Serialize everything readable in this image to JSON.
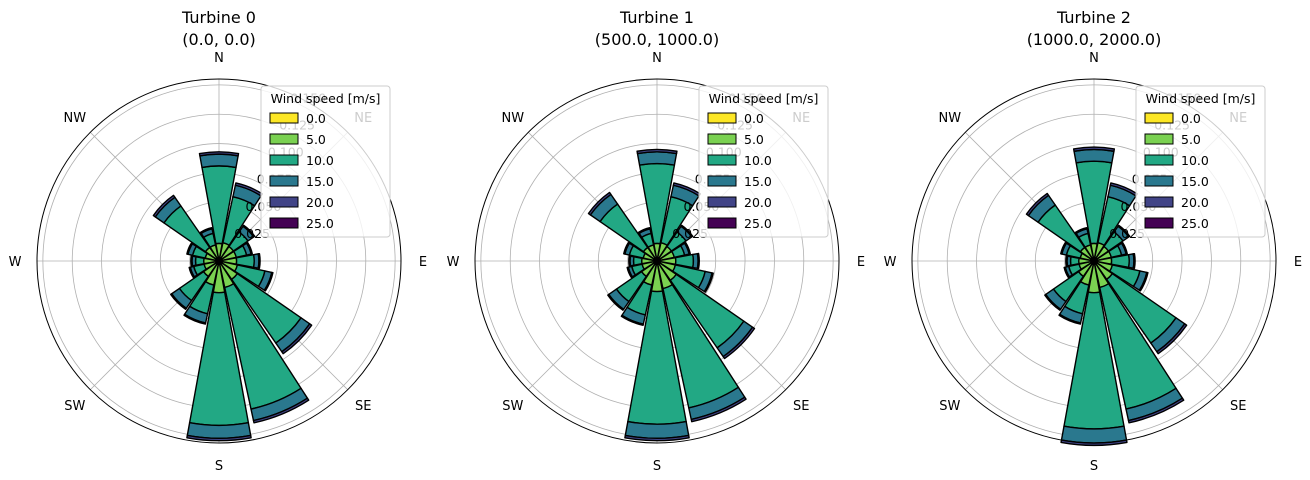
{
  "chart_data": [
    {
      "type": "bar",
      "subtype": "polar-windrose",
      "title": "Turbine 0",
      "subtitle": "(0.0, 0.0)",
      "directions": [
        "N",
        "NNE",
        "NE",
        "ENE",
        "E",
        "ESE",
        "SE",
        "SSE",
        "S",
        "SSW",
        "SW",
        "WSW",
        "W",
        "WNW",
        "NW",
        "NNW"
      ],
      "direction_labels": [
        "N",
        "NE",
        "E",
        "SE",
        "S",
        "SW",
        "W",
        "NW"
      ],
      "radial_ticks": [
        "0.025",
        "0.050",
        "0.075",
        "0.100",
        "0.125",
        "0.150"
      ],
      "rlim": [
        0,
        0.155
      ],
      "legend": {
        "title": "Wind speed [m/s]",
        "placement": "top-right"
      },
      "series": [
        {
          "name": "0.0",
          "color": "#fde725",
          "values": [
            0.001,
            0.001,
            0.001,
            0.001,
            0.001,
            0.001,
            0.001,
            0.001,
            0.001,
            0.001,
            0.001,
            0.001,
            0.001,
            0.001,
            0.001,
            0.001
          ]
        },
        {
          "name": "5.0",
          "color": "#7ad151",
          "values": [
            0.014,
            0.015,
            0.014,
            0.014,
            0.014,
            0.015,
            0.018,
            0.022,
            0.026,
            0.02,
            0.015,
            0.012,
            0.012,
            0.011,
            0.013,
            0.013
          ]
        },
        {
          "name": "10.0",
          "color": "#22a884",
          "values": [
            0.066,
            0.04,
            0.015,
            0.009,
            0.015,
            0.024,
            0.066,
            0.106,
            0.113,
            0.025,
            0.025,
            0.009,
            0.007,
            0.011,
            0.043,
            0.01
          ]
        },
        {
          "name": "15.0",
          "color": "#2a788e",
          "values": [
            0.01,
            0.01,
            0.006,
            0.004,
            0.004,
            0.006,
            0.009,
            0.01,
            0.011,
            0.008,
            0.008,
            0.003,
            0.003,
            0.004,
            0.009,
            0.004
          ]
        },
        {
          "name": "20.0",
          "color": "#414487",
          "values": [
            0.002,
            0.002,
            0.001,
            0.001,
            0.001,
            0.001,
            0.002,
            0.002,
            0.002,
            0.001,
            0.001,
            0.001,
            0.001,
            0.001,
            0.002,
            0.001
          ]
        },
        {
          "name": "25.0",
          "color": "#440154",
          "values": [
            0,
            0,
            0,
            0,
            0,
            0,
            0,
            0,
            0,
            0,
            0,
            0,
            0,
            0,
            0,
            0
          ]
        }
      ]
    },
    {
      "type": "bar",
      "subtype": "polar-windrose",
      "title": "Turbine 1",
      "subtitle": "(500.0, 1000.0)",
      "directions": [
        "N",
        "NNE",
        "NE",
        "ENE",
        "E",
        "ESE",
        "SE",
        "SSE",
        "S",
        "SSW",
        "SW",
        "WSW",
        "W",
        "WNW",
        "NW",
        "NNW"
      ],
      "direction_labels": [
        "N",
        "NE",
        "E",
        "SE",
        "S",
        "SW",
        "W",
        "NW"
      ],
      "radial_ticks": [
        "0.025",
        "0.050",
        "0.075",
        "0.100",
        "0.125",
        "0.150"
      ],
      "rlim": [
        0,
        0.155
      ],
      "legend": {
        "title": "Wind speed [m/s]",
        "placement": "top-right"
      },
      "series": [
        {
          "name": "0.0",
          "color": "#fde725",
          "values": [
            0.001,
            0.001,
            0.001,
            0.001,
            0.001,
            0.001,
            0.001,
            0.001,
            0.001,
            0.001,
            0.001,
            0.001,
            0.001,
            0.001,
            0.001,
            0.001
          ]
        },
        {
          "name": "5.0",
          "color": "#7ad151",
          "values": [
            0.014,
            0.015,
            0.014,
            0.014,
            0.015,
            0.015,
            0.019,
            0.023,
            0.025,
            0.02,
            0.015,
            0.012,
            0.012,
            0.011,
            0.013,
            0.013
          ]
        },
        {
          "name": "10.0",
          "color": "#22a884",
          "values": [
            0.068,
            0.04,
            0.015,
            0.009,
            0.015,
            0.026,
            0.07,
            0.104,
            0.113,
            0.026,
            0.026,
            0.009,
            0.007,
            0.012,
            0.045,
            0.01
          ]
        },
        {
          "name": "15.0",
          "color": "#2a788e",
          "values": [
            0.01,
            0.01,
            0.006,
            0.004,
            0.004,
            0.006,
            0.009,
            0.01,
            0.012,
            0.008,
            0.008,
            0.003,
            0.003,
            0.004,
            0.01,
            0.004
          ]
        },
        {
          "name": "20.0",
          "color": "#414487",
          "values": [
            0.002,
            0.002,
            0.001,
            0.001,
            0.001,
            0.001,
            0.002,
            0.002,
            0.002,
            0.001,
            0.001,
            0.001,
            0.001,
            0.001,
            0.002,
            0.001
          ]
        },
        {
          "name": "25.0",
          "color": "#440154",
          "values": [
            0,
            0,
            0,
            0,
            0,
            0,
            0,
            0,
            0,
            0,
            0,
            0,
            0,
            0,
            0,
            0
          ]
        }
      ]
    },
    {
      "type": "bar",
      "subtype": "polar-windrose",
      "title": "Turbine 2",
      "subtitle": "(1000.0, 2000.0)",
      "directions": [
        "N",
        "NNE",
        "NE",
        "ENE",
        "E",
        "ESE",
        "SE",
        "SSE",
        "S",
        "SSW",
        "SW",
        "WSW",
        "W",
        "WNW",
        "NW",
        "NNW"
      ],
      "direction_labels": [
        "N",
        "NE",
        "E",
        "SE",
        "S",
        "SW",
        "W",
        "NW"
      ],
      "radial_ticks": [
        "0.025",
        "0.050",
        "0.075",
        "0.100",
        "0.125",
        "0.150"
      ],
      "rlim": [
        0,
        0.155
      ],
      "legend": {
        "title": "Wind speed [m/s]",
        "placement": "top-right"
      },
      "series": [
        {
          "name": "0.0",
          "color": "#fde725",
          "values": [
            0.001,
            0.001,
            0.001,
            0.001,
            0.001,
            0.001,
            0.001,
            0.001,
            0.001,
            0.001,
            0.001,
            0.001,
            0.001,
            0.001,
            0.001,
            0.001
          ]
        },
        {
          "name": "5.0",
          "color": "#7ad151",
          "values": [
            0.014,
            0.015,
            0.014,
            0.014,
            0.014,
            0.015,
            0.018,
            0.022,
            0.026,
            0.02,
            0.015,
            0.012,
            0.012,
            0.011,
            0.013,
            0.013
          ]
        },
        {
          "name": "10.0",
          "color": "#22a884",
          "values": [
            0.07,
            0.04,
            0.015,
            0.009,
            0.015,
            0.024,
            0.066,
            0.106,
            0.116,
            0.025,
            0.026,
            0.009,
            0.007,
            0.012,
            0.044,
            0.01
          ]
        },
        {
          "name": "15.0",
          "color": "#2a788e",
          "values": [
            0.01,
            0.01,
            0.006,
            0.004,
            0.004,
            0.006,
            0.009,
            0.01,
            0.012,
            0.008,
            0.008,
            0.003,
            0.003,
            0.004,
            0.01,
            0.004
          ]
        },
        {
          "name": "20.0",
          "color": "#414487",
          "values": [
            0.002,
            0.002,
            0.001,
            0.001,
            0.001,
            0.001,
            0.002,
            0.002,
            0.002,
            0.001,
            0.001,
            0.001,
            0.001,
            0.001,
            0.002,
            0.001
          ]
        },
        {
          "name": "25.0",
          "color": "#440154",
          "values": [
            0,
            0,
            0,
            0,
            0,
            0,
            0,
            0,
            0,
            0,
            0,
            0,
            0,
            0,
            0,
            0
          ]
        }
      ]
    }
  ]
}
